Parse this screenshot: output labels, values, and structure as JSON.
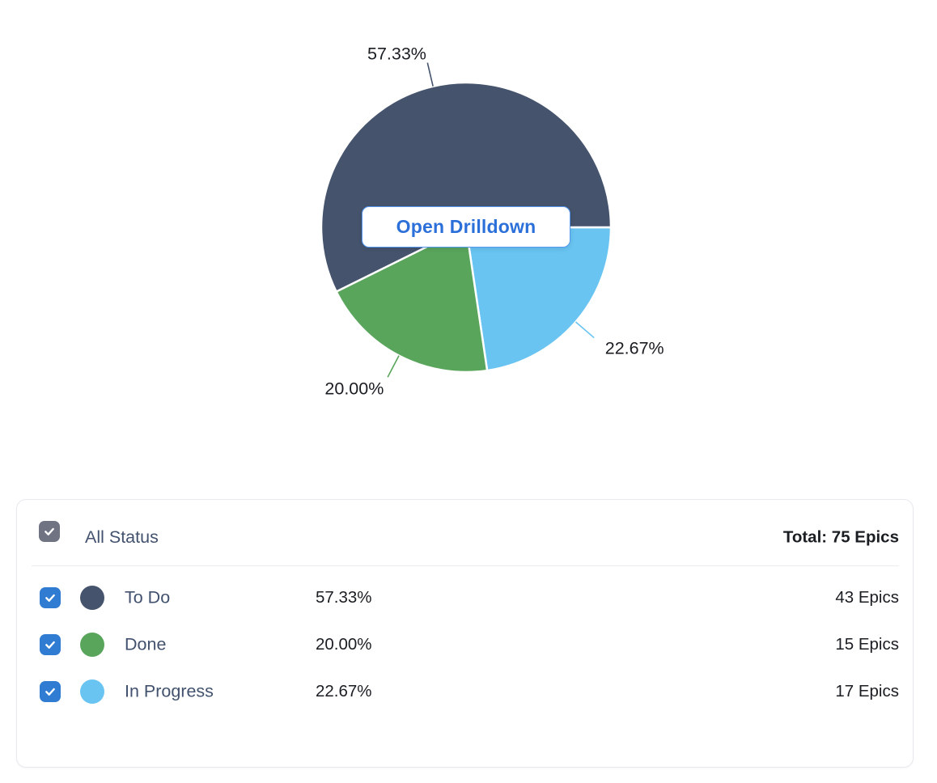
{
  "colors": {
    "todo": "#45536C",
    "done": "#5AA55C",
    "in_progress": "#69C4F1",
    "checkbox_blue": "#2F7CD2",
    "checkbox_gray": "#6F7382",
    "button_border": "#5598F0",
    "button_text": "#2B6FD9",
    "text_dark": "#42526E",
    "text_strong": "#1A1D22"
  },
  "chart_data": {
    "type": "pie",
    "title": "",
    "start_angle_deg": 90,
    "clockwise": true,
    "draw_order_indices": [
      2,
      1,
      0
    ],
    "series": [
      {
        "name": "To Do",
        "percent": 57.33,
        "percent_label": "57.33%",
        "count": 43,
        "count_label": "43 Epics",
        "color": "#45536C"
      },
      {
        "name": "Done",
        "percent": 20.0,
        "percent_label": "20.00%",
        "count": 15,
        "count_label": "15 Epics",
        "color": "#5AA55C"
      },
      {
        "name": "In Progress",
        "percent": 22.67,
        "percent_label": "22.67%",
        "count": 17,
        "count_label": "17 Epics",
        "color": "#69C4F1"
      }
    ],
    "total": 75,
    "center_button_label": "Open Drilldown"
  },
  "legend": {
    "header": {
      "checked": true,
      "label": "All Status",
      "total_label": "Total: 75 Epics"
    },
    "rows": [
      {
        "checked": true,
        "name": "To Do",
        "percent_label": "57.33%",
        "count_label": "43 Epics"
      },
      {
        "checked": true,
        "name": "Done",
        "percent_label": "20.00%",
        "count_label": "15 Epics"
      },
      {
        "checked": true,
        "name": "In Progress",
        "percent_label": "22.67%",
        "count_label": "17 Epics"
      }
    ]
  }
}
